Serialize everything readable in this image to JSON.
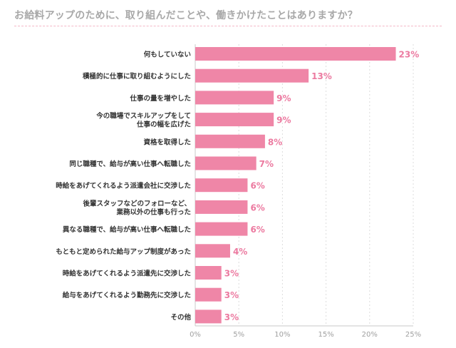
{
  "title": "お給料アップのために、取り組んだことや、働きかけたことはありますか？",
  "colors": {
    "bar": "#ef86a7",
    "value_label": "#ec7aa0",
    "grid": "#dcdcdc",
    "axis": "#c8c8c8",
    "title": "#a8a8a8"
  },
  "chart_data": {
    "type": "bar",
    "orientation": "horizontal",
    "title": "お給料アップのために、取り組んだことや、働きかけたことはありますか？",
    "xlabel": "",
    "ylabel": "",
    "xlim": [
      0,
      25
    ],
    "ticks": [
      0,
      5,
      10,
      15,
      20,
      25
    ],
    "tick_labels": [
      "0%",
      "5%",
      "10%",
      "15%",
      "20%",
      "25%"
    ],
    "grid": true,
    "categories": [
      [
        "何もしていない"
      ],
      [
        "積極的に仕事に取り組むようにした"
      ],
      [
        "仕事の量を増やした"
      ],
      [
        "今の職場でスキルアップをして",
        "仕事の幅を広げた"
      ],
      [
        "資格を取得した"
      ],
      [
        "同じ職種で、給与が高い仕事へ転職した"
      ],
      [
        "時給をあげてくれるよう派遣会社に交渉した"
      ],
      [
        "後輩スタッフなどのフォローなど、",
        "業務以外の仕事も行った"
      ],
      [
        "異なる職種で、給与が高い仕事へ転職した"
      ],
      [
        "もともと定められた給与アップ制度があった"
      ],
      [
        "時給をあげてくれるよう派遣先に交渉した"
      ],
      [
        "給与をあげてくれるよう勤務先に交渉した"
      ],
      [
        "その他"
      ]
    ],
    "values": [
      23,
      13,
      9,
      9,
      8,
      7,
      6,
      6,
      6,
      4,
      3,
      3,
      3
    ],
    "value_labels": [
      "23%",
      "13%",
      "9%",
      "9%",
      "8%",
      "7%",
      "6%",
      "6%",
      "6%",
      "4%",
      "3%",
      "3%",
      "3%"
    ]
  }
}
